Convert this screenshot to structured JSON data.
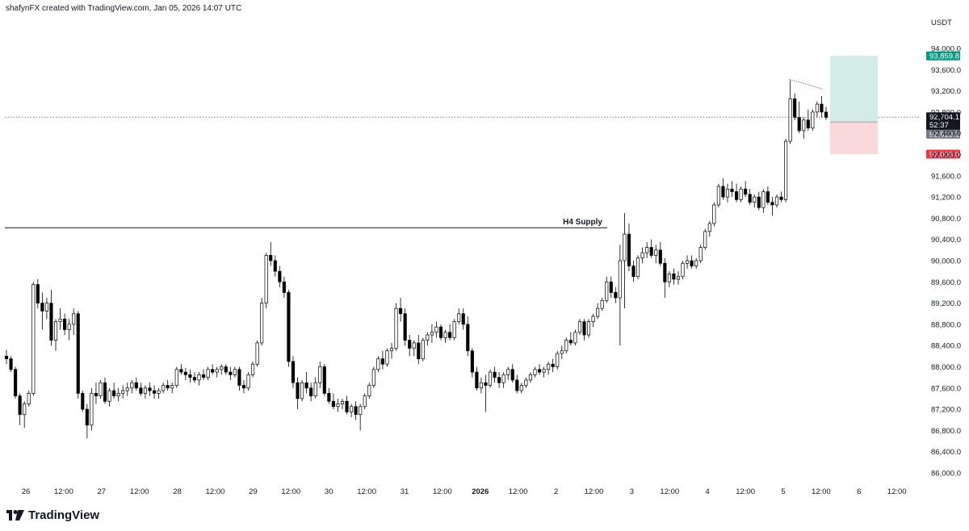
{
  "header": {
    "text": "shafynFX created with TradingView.com, Jan 05, 2026 14:07 UTC"
  },
  "brand": {
    "name": "TradingView"
  },
  "chart_data": {
    "type": "candlestick",
    "currency": "USDT",
    "y_ticks": [
      "86,000.0",
      "86,400.0",
      "86,800.0",
      "87,200.0",
      "87,600.0",
      "88,000.0",
      "88,400.0",
      "88,800.0",
      "89,200.0",
      "89,600.0",
      "90,000.0",
      "90,400.0",
      "90,800.0",
      "91,200.0",
      "91,600.0",
      "92,000.0",
      "92,400.0",
      "92,800.0",
      "93,200.0",
      "93,600.0",
      "94,000.0"
    ],
    "x_ticks": [
      "26",
      "12:00",
      "27",
      "12:00",
      "28",
      "12:00",
      "29",
      "12:00",
      "30",
      "12:00",
      "31",
      "12:00",
      "2026",
      "12:00",
      "2",
      "12:00",
      "3",
      "12:00",
      "4",
      "12:00",
      "5",
      "12:00",
      "6",
      "12:00"
    ],
    "bold_x_tick": "2026",
    "ylim": [
      85900,
      94200
    ],
    "annotations": {
      "supply_label": "H4 Supply",
      "supply_level": 90620
    },
    "position": {
      "take_profit": 93859.8,
      "entry": 92613.1,
      "stop_loss": 92008.0,
      "tp_label": "93,859.8",
      "entry_label": "92,613.1",
      "sl_label": "92,008.0"
    },
    "current_price": {
      "value": 92704.1,
      "label": "92,704.1",
      "countdown": "52:37"
    },
    "colors": {
      "up": "#ffffff",
      "down": "#000000",
      "tp_fill": "#d3ece7",
      "sl_fill": "#f9d9dc",
      "tp_tag": "#089981",
      "sl_tag": "#f23645",
      "entry_tag": "#787b86",
      "price_tag": "#131722"
    },
    "candles": [
      [
        88200,
        88320,
        88050,
        88150
      ],
      [
        88150,
        88200,
        87900,
        87950
      ],
      [
        87950,
        88000,
        87400,
        87450
      ],
      [
        87450,
        87500,
        86900,
        87100
      ],
      [
        87100,
        87350,
        86850,
        87300
      ],
      [
        87300,
        87550,
        87250,
        87500
      ],
      [
        87500,
        89600,
        87450,
        89550
      ],
      [
        89550,
        89650,
        89100,
        89200
      ],
      [
        89200,
        89400,
        88700,
        89050
      ],
      [
        89050,
        89300,
        88900,
        89200
      ],
      [
        89200,
        89450,
        88400,
        88500
      ],
      [
        88500,
        88900,
        88300,
        88850
      ],
      [
        88850,
        89100,
        88700,
        88900
      ],
      [
        88900,
        89000,
        88600,
        88700
      ],
      [
        88700,
        88900,
        88500,
        88800
      ],
      [
        88800,
        89100,
        88600,
        89000
      ],
      [
        89000,
        89050,
        87400,
        87500
      ],
      [
        87500,
        87550,
        87150,
        87200
      ],
      [
        87200,
        87300,
        86650,
        86900
      ],
      [
        86900,
        87600,
        86800,
        87500
      ],
      [
        87500,
        87700,
        87300,
        87450
      ],
      [
        87450,
        87750,
        87400,
        87700
      ],
      [
        87700,
        87800,
        87300,
        87350
      ],
      [
        87350,
        87600,
        87250,
        87550
      ],
      [
        87550,
        87700,
        87400,
        87450
      ],
      [
        87450,
        87600,
        87350,
        87500
      ],
      [
        87500,
        87650,
        87400,
        87550
      ],
      [
        87550,
        87700,
        87450,
        87600
      ],
      [
        87600,
        87750,
        87500,
        87700
      ],
      [
        87700,
        87800,
        87550,
        87600
      ],
      [
        87600,
        87700,
        87450,
        87500
      ],
      [
        87500,
        87650,
        87400,
        87600
      ],
      [
        87600,
        87700,
        87450,
        87550
      ],
      [
        87550,
        87650,
        87400,
        87500
      ],
      [
        87500,
        87600,
        87400,
        87550
      ],
      [
        87550,
        87700,
        87500,
        87650
      ],
      [
        87650,
        87750,
        87550,
        87600
      ],
      [
        87600,
        87700,
        87500,
        87650
      ],
      [
        87650,
        88000,
        87600,
        87950
      ],
      [
        87950,
        88050,
        87850,
        87900
      ],
      [
        87900,
        87980,
        87750,
        87850
      ],
      [
        87850,
        87950,
        87700,
        87800
      ],
      [
        87800,
        87900,
        87700,
        87750
      ],
      [
        87750,
        87900,
        87650,
        87850
      ],
      [
        87850,
        87950,
        87750,
        87800
      ],
      [
        87800,
        88000,
        87750,
        87950
      ],
      [
        87950,
        88050,
        87850,
        87900
      ],
      [
        87900,
        88000,
        87800,
        87950
      ],
      [
        87950,
        88050,
        87850,
        88000
      ],
      [
        88000,
        88050,
        87850,
        87900
      ],
      [
        87900,
        88000,
        87750,
        87850
      ],
      [
        87850,
        88000,
        87800,
        87950
      ],
      [
        87950,
        88000,
        87550,
        87650
      ],
      [
        87650,
        87750,
        87500,
        87600
      ],
      [
        87600,
        87900,
        87550,
        87850
      ],
      [
        87850,
        88100,
        87800,
        88050
      ],
      [
        88050,
        88500,
        88000,
        88450
      ],
      [
        88450,
        89300,
        88400,
        89200
      ],
      [
        89200,
        90150,
        89100,
        90100
      ],
      [
        90100,
        90350,
        89900,
        90000
      ],
      [
        90000,
        90100,
        89700,
        89800
      ],
      [
        89800,
        89900,
        89500,
        89600
      ],
      [
        89600,
        89700,
        89300,
        89400
      ],
      [
        89400,
        89450,
        88000,
        88100
      ],
      [
        88100,
        88200,
        87600,
        87700
      ],
      [
        87700,
        87800,
        87200,
        87400
      ],
      [
        87400,
        87750,
        87350,
        87700
      ],
      [
        87700,
        87900,
        87500,
        87600
      ],
      [
        87600,
        87700,
        87350,
        87450
      ],
      [
        87450,
        87800,
        87400,
        87700
      ],
      [
        87700,
        88100,
        87600,
        88000
      ],
      [
        88000,
        88050,
        87450,
        87500
      ],
      [
        87500,
        87600,
        87300,
        87350
      ],
      [
        87350,
        87500,
        87200,
        87250
      ],
      [
        87250,
        87400,
        87150,
        87300
      ],
      [
        87300,
        87400,
        87200,
        87350
      ],
      [
        87350,
        87450,
        87100,
        87150
      ],
      [
        87150,
        87300,
        87050,
        87250
      ],
      [
        87250,
        87350,
        87000,
        87100
      ],
      [
        87100,
        87300,
        86800,
        87250
      ],
      [
        87250,
        87500,
        87200,
        87450
      ],
      [
        87450,
        87700,
        87400,
        87650
      ],
      [
        87650,
        88000,
        87600,
        87950
      ],
      [
        87950,
        88200,
        87900,
        88150
      ],
      [
        88150,
        88300,
        87950,
        88050
      ],
      [
        88050,
        88350,
        88000,
        88300
      ],
      [
        88300,
        88450,
        88150,
        88350
      ],
      [
        88350,
        89200,
        88300,
        89100
      ],
      [
        89100,
        89300,
        88850,
        89000
      ],
      [
        89000,
        89100,
        88400,
        88500
      ],
      [
        88500,
        88600,
        88200,
        88350
      ],
      [
        88350,
        88500,
        88200,
        88450
      ],
      [
        88450,
        88600,
        88050,
        88150
      ],
      [
        88150,
        88550,
        88100,
        88500
      ],
      [
        88500,
        88650,
        88400,
        88600
      ],
      [
        88600,
        88800,
        88450,
        88650
      ],
      [
        88650,
        88850,
        88550,
        88750
      ],
      [
        88750,
        88800,
        88500,
        88550
      ],
      [
        88550,
        88700,
        88450,
        88650
      ],
      [
        88650,
        88800,
        88500,
        88550
      ],
      [
        88550,
        88900,
        88500,
        88850
      ],
      [
        88850,
        89100,
        88800,
        89000
      ],
      [
        89000,
        89100,
        88700,
        88800
      ],
      [
        88800,
        88950,
        88200,
        88300
      ],
      [
        88300,
        88350,
        87800,
        87900
      ],
      [
        87900,
        88000,
        87550,
        87600
      ],
      [
        87600,
        87800,
        87500,
        87700
      ],
      [
        87700,
        87850,
        87150,
        87650
      ],
      [
        87650,
        87950,
        87600,
        87900
      ],
      [
        87900,
        88000,
        87700,
        87800
      ],
      [
        87800,
        87900,
        87600,
        87700
      ],
      [
        87700,
        87900,
        87600,
        87850
      ],
      [
        87850,
        88000,
        87750,
        87950
      ],
      [
        87950,
        88050,
        87700,
        87750
      ],
      [
        87750,
        87850,
        87500,
        87550
      ],
      [
        87550,
        87700,
        87500,
        87650
      ],
      [
        87650,
        87800,
        87600,
        87750
      ],
      [
        87750,
        87900,
        87700,
        87850
      ],
      [
        87850,
        88000,
        87800,
        87950
      ],
      [
        87950,
        88050,
        87850,
        87900
      ],
      [
        87900,
        88000,
        87800,
        87950
      ],
      [
        87950,
        88100,
        87850,
        88050
      ],
      [
        88050,
        88150,
        87900,
        88000
      ],
      [
        88000,
        88300,
        87950,
        88250
      ],
      [
        88250,
        88400,
        88150,
        88300
      ],
      [
        88300,
        88550,
        88250,
        88500
      ],
      [
        88500,
        88650,
        88400,
        88450
      ],
      [
        88450,
        88700,
        88400,
        88650
      ],
      [
        88650,
        88900,
        88600,
        88850
      ],
      [
        88850,
        88900,
        88500,
        88600
      ],
      [
        88600,
        88900,
        88550,
        88850
      ],
      [
        88850,
        89000,
        88750,
        88950
      ],
      [
        88950,
        89200,
        88900,
        89100
      ],
      [
        89100,
        89300,
        89050,
        89250
      ],
      [
        89250,
        89700,
        89200,
        89600
      ],
      [
        89600,
        89700,
        89300,
        89400
      ],
      [
        89400,
        89500,
        89200,
        89300
      ],
      [
        89300,
        90300,
        88400,
        90000
      ],
      [
        90000,
        90900,
        89100,
        90500
      ],
      [
        90500,
        90700,
        89800,
        89900
      ],
      [
        89900,
        90000,
        89600,
        89700
      ],
      [
        89700,
        90100,
        89650,
        90050
      ],
      [
        90050,
        90250,
        89950,
        90150
      ],
      [
        90150,
        90350,
        90050,
        90250
      ],
      [
        90250,
        90400,
        90050,
        90100
      ],
      [
        90100,
        90300,
        89950,
        90200
      ],
      [
        90200,
        90350,
        89900,
        89950
      ],
      [
        89950,
        90050,
        89300,
        89600
      ],
      [
        89600,
        89800,
        89500,
        89750
      ],
      [
        89750,
        89850,
        89550,
        89650
      ],
      [
        89650,
        89800,
        89550,
        89700
      ],
      [
        89700,
        90000,
        89650,
        89950
      ],
      [
        89950,
        90100,
        89850,
        90000
      ],
      [
        90000,
        90100,
        89850,
        89900
      ],
      [
        89900,
        90050,
        89850,
        90000
      ],
      [
        90000,
        90300,
        89950,
        90250
      ],
      [
        90250,
        90600,
        90200,
        90550
      ],
      [
        90550,
        90750,
        90450,
        90700
      ],
      [
        90700,
        91100,
        90650,
        91050
      ],
      [
        91050,
        91450,
        91000,
        91400
      ],
      [
        91400,
        91550,
        91150,
        91200
      ],
      [
        91200,
        91450,
        91100,
        91350
      ],
      [
        91350,
        91500,
        91200,
        91300
      ],
      [
        91300,
        91450,
        91100,
        91150
      ],
      [
        91150,
        91400,
        91100,
        91350
      ],
      [
        91350,
        91500,
        91200,
        91250
      ],
      [
        91250,
        91350,
        91050,
        91100
      ],
      [
        91100,
        91250,
        91000,
        91200
      ],
      [
        91200,
        91300,
        90950,
        91000
      ],
      [
        91000,
        91350,
        90900,
        91300
      ],
      [
        91300,
        91400,
        91050,
        91100
      ],
      [
        91100,
        91200,
        90850,
        91050
      ],
      [
        91050,
        91250,
        91000,
        91200
      ],
      [
        91200,
        91300,
        91100,
        91150
      ],
      [
        91150,
        92300,
        91100,
        92250
      ],
      [
        92250,
        93400,
        92200,
        93050
      ],
      [
        93050,
        93150,
        92650,
        92700
      ],
      [
        92700,
        93000,
        92400,
        92450
      ],
      [
        92450,
        92700,
        92300,
        92650
      ],
      [
        92650,
        92850,
        92450,
        92500
      ],
      [
        92500,
        92850,
        92450,
        92800
      ],
      [
        92800,
        93000,
        92700,
        92950
      ],
      [
        92950,
        93100,
        92700,
        92800
      ],
      [
        92800,
        92900,
        92650,
        92700
      ]
    ]
  }
}
